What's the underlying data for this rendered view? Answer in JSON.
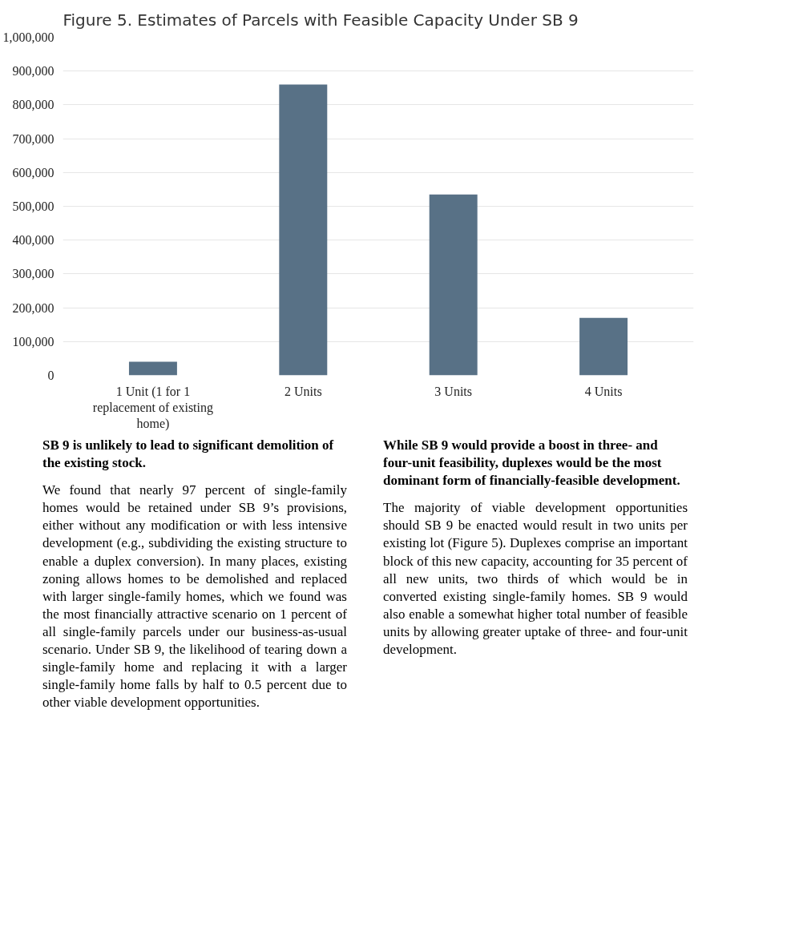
{
  "chart_data": {
    "type": "bar",
    "title": "Figure 5. Estimates of Parcels with Feasible Capacity Under SB 9",
    "categories": [
      "1 Unit (1 for 1 replacement of existing home)",
      "2 Units",
      "3 Units",
      "4 Units"
    ],
    "values": [
      40000,
      860000,
      535000,
      170000
    ],
    "color": "#587186",
    "ylim": [
      0,
      1000000
    ],
    "yticks": [
      {
        "value": 0,
        "label": "0"
      },
      {
        "value": 100000,
        "label": "100,000"
      },
      {
        "value": 200000,
        "label": "200,000"
      },
      {
        "value": 300000,
        "label": "300,000"
      },
      {
        "value": 400000,
        "label": "400,000"
      },
      {
        "value": 500000,
        "label": "500,000"
      },
      {
        "value": 600000,
        "label": "600,000"
      },
      {
        "value": 700000,
        "label": "700,000"
      },
      {
        "value": 800000,
        "label": "800,000"
      },
      {
        "value": 900000,
        "label": "900,000"
      },
      {
        "value": 1000000,
        "label": "1,000,000"
      }
    ],
    "grid": "y",
    "annotations": [
      "SB 9 is unlikely to lead to significant demolition of the existing stock.",
      "We found that nearly 97 percent of single-family homes would be retained under SB 9’s provisions, either without any modification or with less intensive development (e.g., subdividing the existing structure to enable a duplex conversion). In many places, existing zoning allows homes to be demolished and replaced with larger single-family homes, which we found was the most financially attractive scenario on 1 percent of all single-family parcels under our business-as-usual scenario. Under SB 9, the likelihood of tearing down a single-family home and replacing it with a larger single-family home falls by half to 0.5 percent due to other viable development opportunities.",
      "While SB 9 would provide a boost in three- and four-unit feasibility, duplexes would be the most dominant form of financially-feasible development.",
      "The majority of viable development opportunities should SB 9 be enacted would result in two units per existing lot (Figure 5). Duplexes comprise an important block of this new capacity, accounting for 35 percent of all new units, two thirds of which would be in converted existing single-family homes. SB 9 would also enable a somewhat higher total number of feasible units by allowing greater uptake of three- and four-unit development."
    ]
  }
}
